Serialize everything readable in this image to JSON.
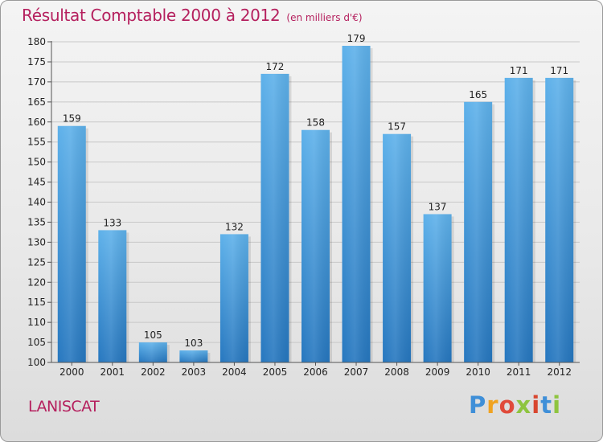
{
  "header": {
    "title": "Résultat Comptable 2000 à 2012",
    "subtitle": "(en milliers d'€)"
  },
  "footer": {
    "entity": "LANISCAT",
    "logo_text": "Proxiti"
  },
  "colors": {
    "title": "#b5205e",
    "bar_top": "#5aaee8",
    "bar_bottom": "#2a7dc4",
    "grid": "#c8c8c8"
  },
  "chart_data": {
    "type": "bar",
    "title": "Résultat Comptable 2000 à 2012",
    "subtitle": "(en milliers d'€)",
    "xlabel": "",
    "ylabel": "",
    "ylim": [
      100,
      180
    ],
    "yticks": [
      100,
      105,
      110,
      115,
      120,
      125,
      130,
      135,
      140,
      145,
      150,
      155,
      160,
      165,
      170,
      175,
      180
    ],
    "grid": true,
    "categories": [
      "2000",
      "2001",
      "2002",
      "2003",
      "2004",
      "2005",
      "2006",
      "2007",
      "2008",
      "2009",
      "2010",
      "2011",
      "2012"
    ],
    "values": [
      159,
      133,
      105,
      103,
      132,
      172,
      158,
      179,
      157,
      137,
      165,
      171,
      171
    ]
  }
}
